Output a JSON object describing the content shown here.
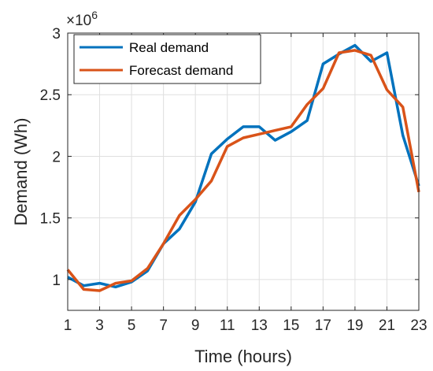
{
  "chart_data": {
    "type": "line",
    "xlabel": "Time (hours)",
    "ylabel": "Demand (Wh)",
    "y_multiplier_label": "×10",
    "y_multiplier_exponent": "6",
    "xlim": [
      1,
      23
    ],
    "ylim": [
      0.75,
      3.0
    ],
    "xticks": [
      1,
      3,
      5,
      7,
      9,
      11,
      13,
      15,
      17,
      19,
      21,
      23
    ],
    "yticks": [
      1,
      1.5,
      2,
      2.5,
      3
    ],
    "ytick_labels": [
      "1",
      "1.5",
      "2",
      "2.5",
      "3"
    ],
    "grid": true,
    "legend_position": "top-left",
    "x": [
      1,
      2,
      3,
      4,
      5,
      6,
      7,
      8,
      9,
      10,
      11,
      12,
      13,
      14,
      15,
      16,
      17,
      18,
      19,
      20,
      21,
      22,
      23
    ],
    "series": [
      {
        "name": "Real demand",
        "color": "#0072BD",
        "values": [
          1.02,
          0.95,
          0.97,
          0.94,
          0.98,
          1.07,
          1.29,
          1.41,
          1.63,
          2.02,
          2.14,
          2.24,
          2.24,
          2.13,
          2.2,
          2.29,
          2.75,
          2.83,
          2.9,
          2.77,
          2.84,
          2.17,
          1.76
        ]
      },
      {
        "name": "Forecast demand",
        "color": "#D95319",
        "values": [
          1.08,
          0.92,
          0.91,
          0.97,
          0.99,
          1.09,
          1.29,
          1.52,
          1.65,
          1.8,
          2.08,
          2.15,
          2.18,
          2.21,
          2.24,
          2.42,
          2.55,
          2.84,
          2.86,
          2.82,
          2.54,
          2.4,
          1.71
        ]
      }
    ]
  }
}
